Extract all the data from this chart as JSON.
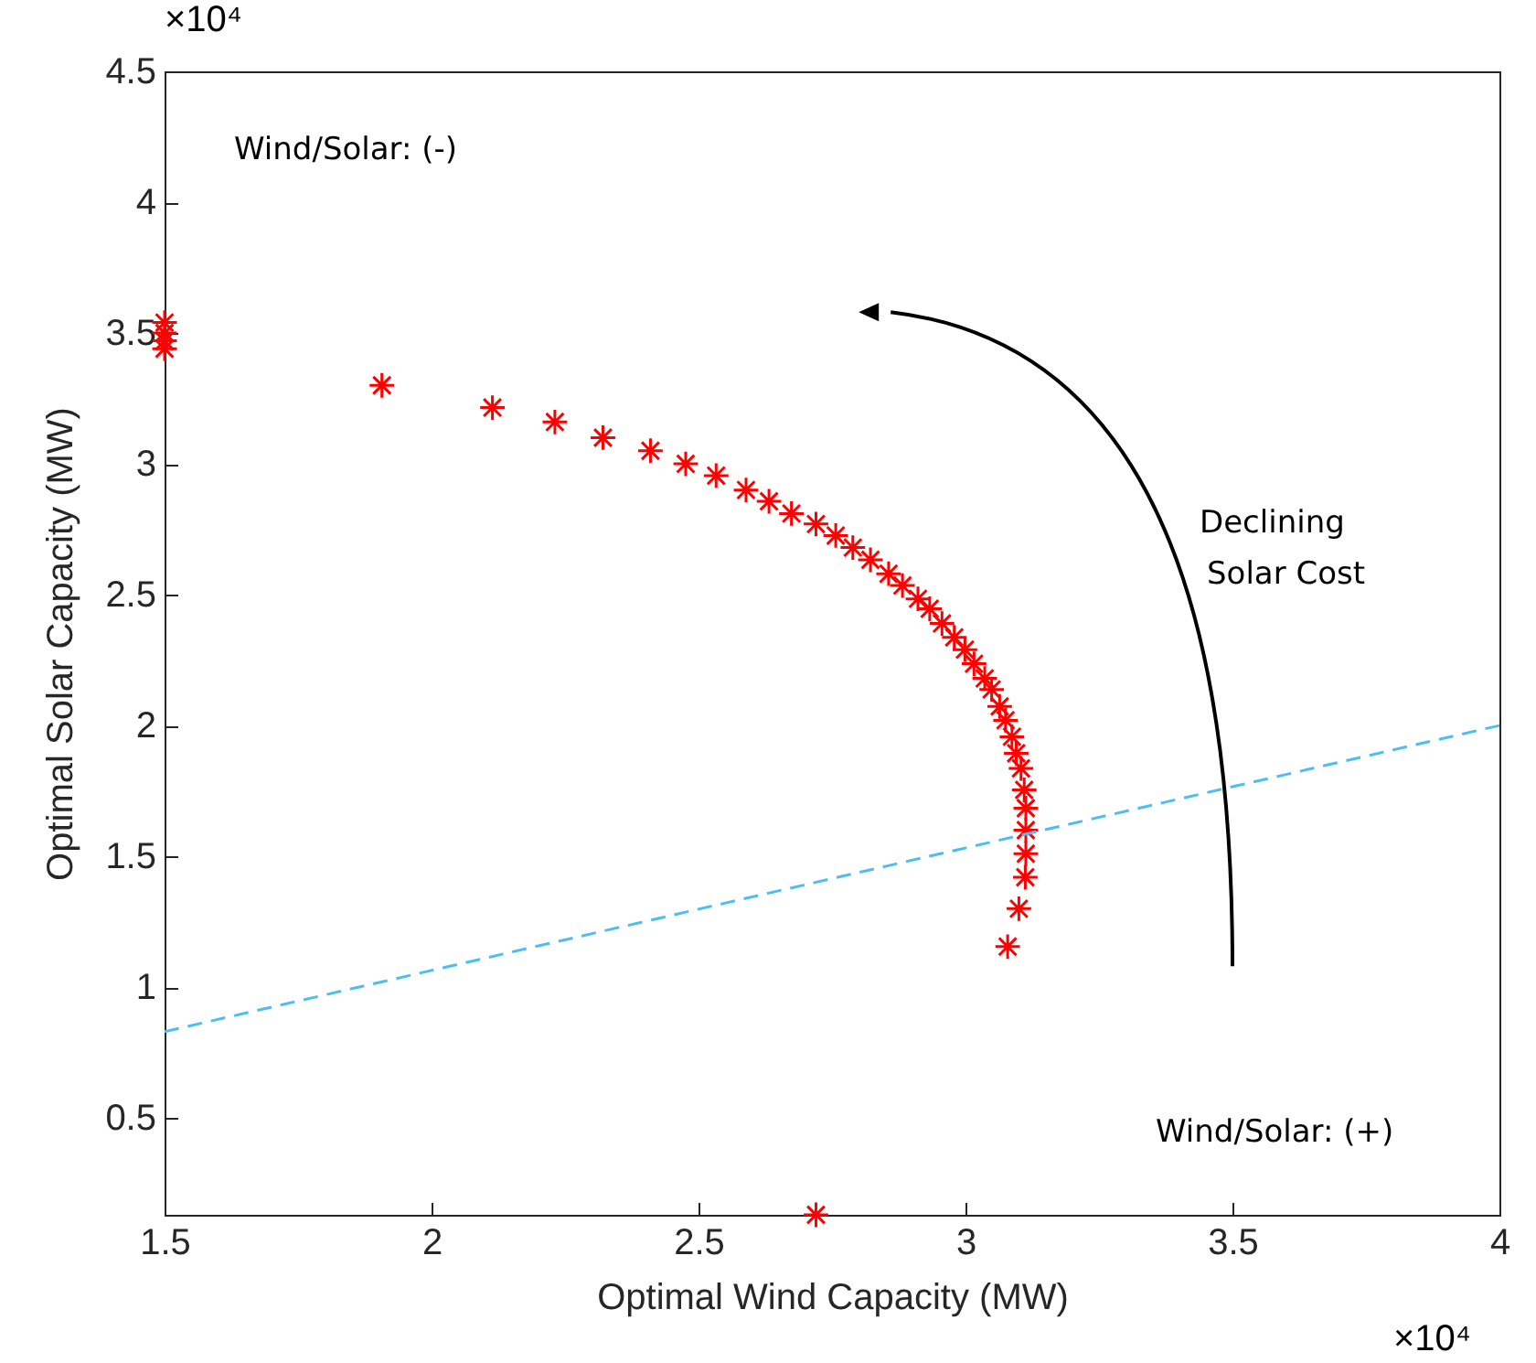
{
  "chart_data": {
    "type": "scatter",
    "xlabel": "Optimal Wind Capacity (MW)",
    "ylabel": "Optimal Solar Capacity (MW)",
    "xlim": [
      1.5,
      4
    ],
    "xticks": [
      1.5,
      2,
      2.5,
      3,
      3.5,
      4
    ],
    "ylim": [
      0.13,
      4.5
    ],
    "yticks": [
      0.5,
      1,
      1.5,
      2,
      2.5,
      3,
      3.5,
      4,
      4.5
    ],
    "grid": false,
    "annotations": [
      "×10⁴",
      "×10⁴",
      "Wind/Solar: (-)",
      "Wind/Solar: (+)",
      "Declining",
      "Solar Cost"
    ],
    "series": [
      {
        "type": "scatter",
        "color": "#ff0000",
        "marker": "cross",
        "x": [
          1.5,
          1.5,
          1.5,
          1.5,
          1.907,
          2.114,
          2.231,
          2.321,
          2.41,
          2.476,
          2.533,
          2.589,
          2.632,
          2.674,
          2.72,
          2.757,
          2.789,
          2.822,
          2.856,
          2.882,
          2.911,
          2.933,
          2.956,
          2.979,
          2.999,
          3.016,
          3.036,
          3.049,
          3.064,
          3.075,
          3.087,
          3.095,
          3.104,
          3.11,
          3.113,
          3.113,
          3.113,
          3.112,
          3.1,
          3.079,
          2.72
        ],
        "values": [
          3.54,
          3.5,
          3.47,
          3.44,
          3.3,
          3.215,
          3.16,
          3.1,
          3.05,
          3.0,
          2.955,
          2.9,
          2.857,
          2.81,
          2.77,
          2.726,
          2.68,
          2.633,
          2.58,
          2.535,
          2.484,
          2.446,
          2.39,
          2.337,
          2.29,
          2.236,
          2.18,
          2.138,
          2.073,
          2.02,
          1.957,
          1.894,
          1.836,
          1.754,
          1.684,
          1.6,
          1.51,
          1.42,
          1.3,
          1.155,
          0.13
        ]
      },
      {
        "type": "line",
        "color": "#4dbeee",
        "line_style": "dashed",
        "x": [
          1.5,
          4
        ],
        "values": [
          0.83,
          2.0
        ]
      }
    ]
  }
}
